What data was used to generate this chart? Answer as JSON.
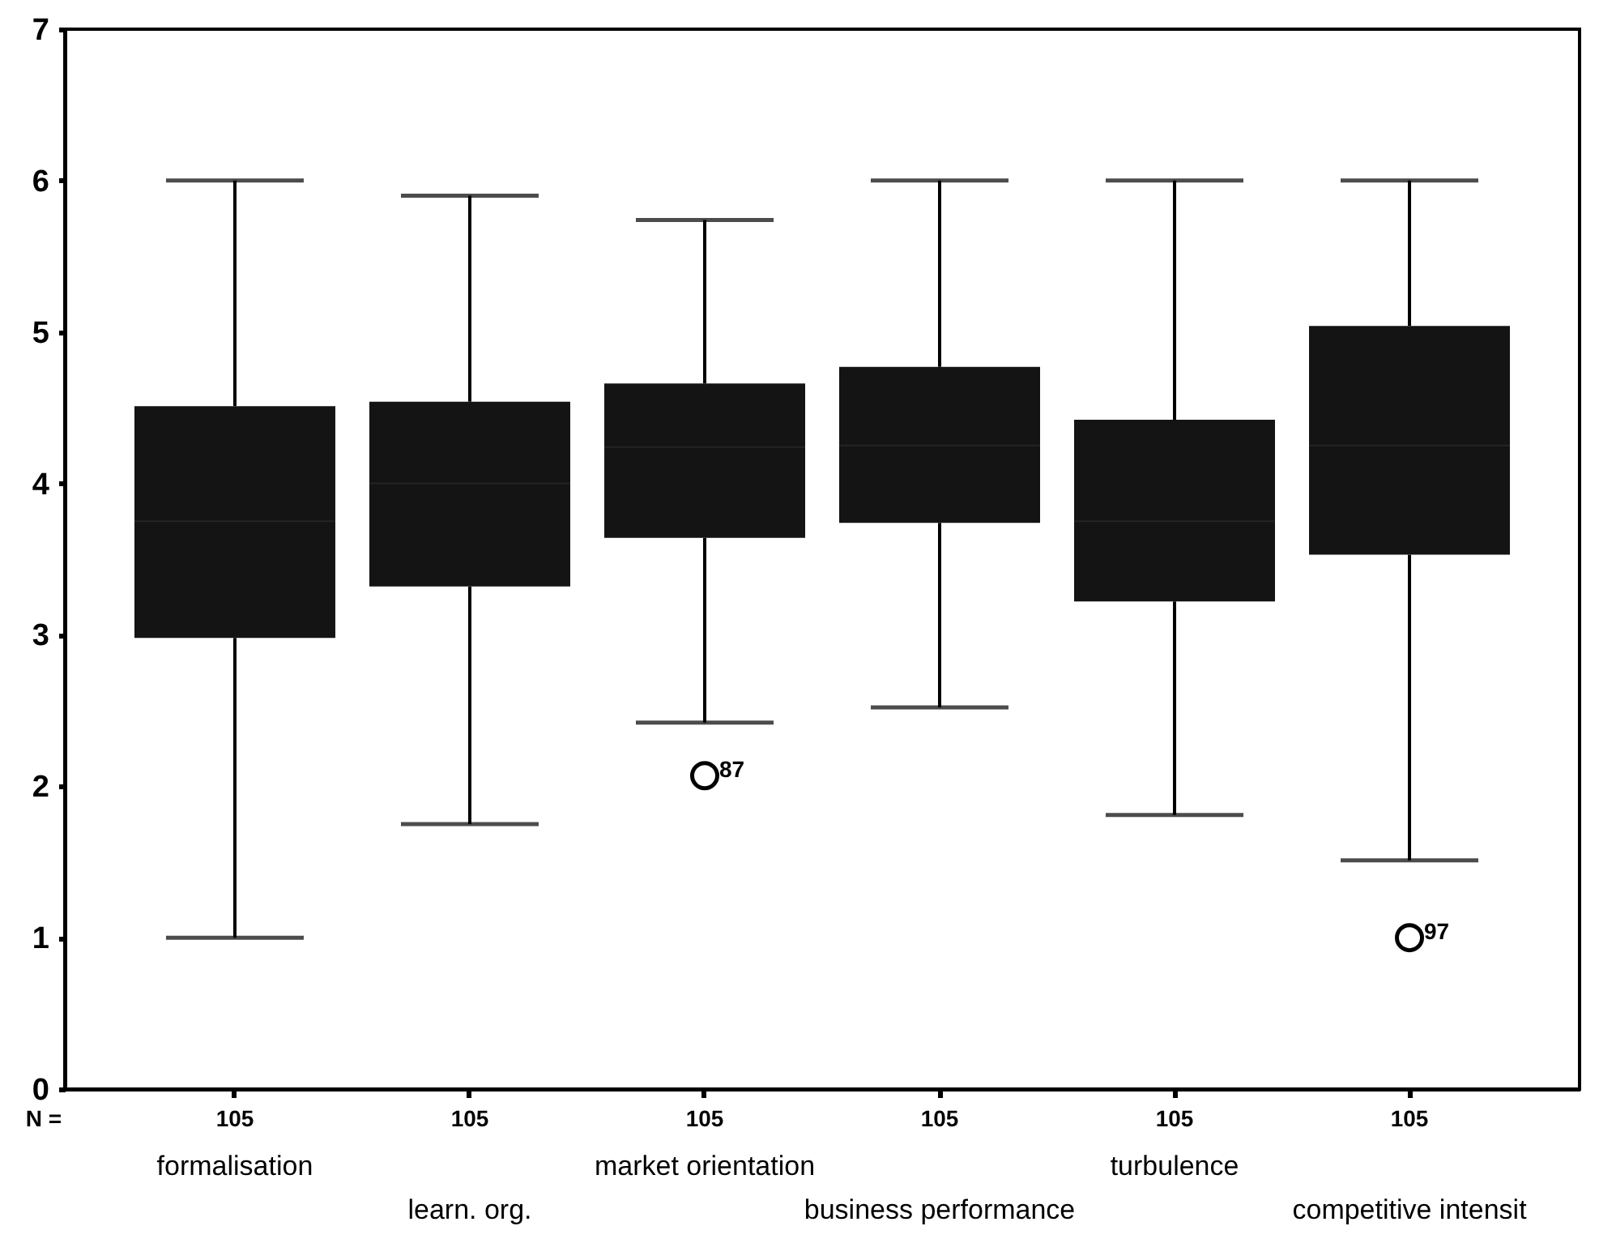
{
  "chart_data": {
    "type": "box",
    "categories": [
      "formalisation",
      "learn. org.",
      "market orientation",
      "business performance",
      "turbulence",
      "competitive intensit"
    ],
    "series": [
      {
        "color": "#141414",
        "boxes": [
          {
            "low": 1.0,
            "q1": 2.98,
            "median": 3.75,
            "q3": 4.51,
            "high": 6.0
          },
          {
            "low": 1.75,
            "q1": 3.32,
            "median": 4.0,
            "q3": 4.54,
            "high": 5.9
          },
          {
            "low": 2.42,
            "q1": 3.64,
            "median": 4.24,
            "q3": 4.66,
            "high": 5.74,
            "outliers": [
              2.07
            ]
          },
          {
            "low": 2.52,
            "q1": 3.74,
            "median": 4.25,
            "q3": 4.77,
            "high": 6.0
          },
          {
            "low": 1.81,
            "q1": 3.22,
            "median": 3.75,
            "q3": 4.42,
            "high": 6.0
          },
          {
            "low": 1.51,
            "q1": 3.53,
            "median": 4.25,
            "q3": 5.04,
            "high": 6.0,
            "outliers": [
              1.0
            ]
          }
        ]
      }
    ],
    "ylim": [
      0,
      7
    ],
    "yticks": [
      0,
      1,
      2,
      3,
      4,
      5,
      6,
      7
    ],
    "annotations": [
      "N =",
      "105",
      "105",
      "105",
      "105",
      "105",
      "105",
      "87",
      "97"
    ]
  }
}
